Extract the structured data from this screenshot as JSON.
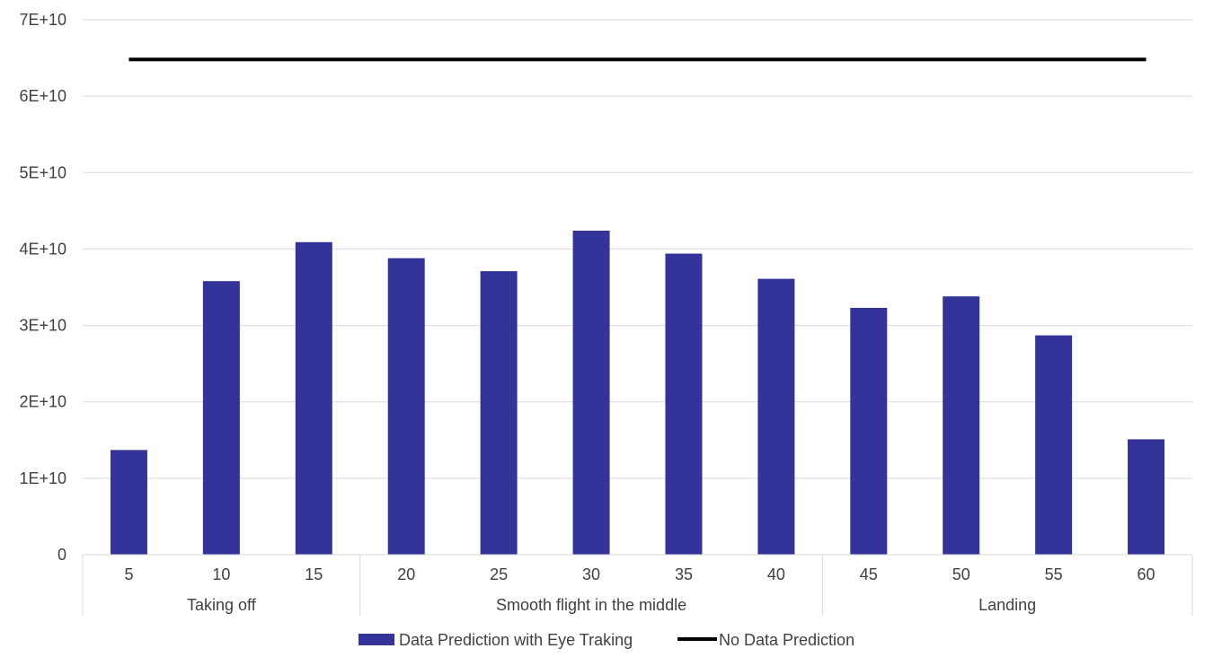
{
  "colors": {
    "bar": "#343399",
    "line": "#000000",
    "grid": "#d9d9d9",
    "text": "#404040"
  },
  "chart_data": {
    "type": "bar",
    "categories": [
      "5",
      "10",
      "15",
      "20",
      "25",
      "30",
      "35",
      "40",
      "45",
      "50",
      "55",
      "60"
    ],
    "groups": [
      {
        "label": "Taking off",
        "categories": [
          "5",
          "10",
          "15"
        ]
      },
      {
        "label": "Smooth flight in the middle",
        "categories": [
          "20",
          "25",
          "30",
          "35",
          "40"
        ]
      },
      {
        "label": "Landing",
        "categories": [
          "45",
          "50",
          "55",
          "60"
        ]
      }
    ],
    "series": [
      {
        "name": "Data Prediction with Eye Traking",
        "type": "bar",
        "values": [
          13700000000,
          35800000000,
          40900000000,
          38800000000,
          37100000000,
          42400000000,
          39400000000,
          36100000000,
          32300000000,
          33800000000,
          28700000000,
          15100000000
        ]
      },
      {
        "name": "No Data Prediction",
        "type": "line",
        "values": [
          64800000000,
          64800000000,
          64800000000,
          64800000000,
          64800000000,
          64800000000,
          64800000000,
          64800000000,
          64800000000,
          64800000000,
          64800000000,
          64800000000
        ]
      }
    ],
    "ylim": [
      0,
      70000000000
    ],
    "yticks": [
      {
        "value": 0,
        "label": "0"
      },
      {
        "value": 10000000000,
        "label": "1E+10"
      },
      {
        "value": 20000000000,
        "label": "2E+10"
      },
      {
        "value": 30000000000,
        "label": "3E+10"
      },
      {
        "value": 40000000000,
        "label": "4E+10"
      },
      {
        "value": 50000000000,
        "label": "5E+10"
      },
      {
        "value": 60000000000,
        "label": "6E+10"
      },
      {
        "value": 70000000000,
        "label": "7E+10"
      }
    ],
    "grid": true,
    "legend": "bottom"
  }
}
